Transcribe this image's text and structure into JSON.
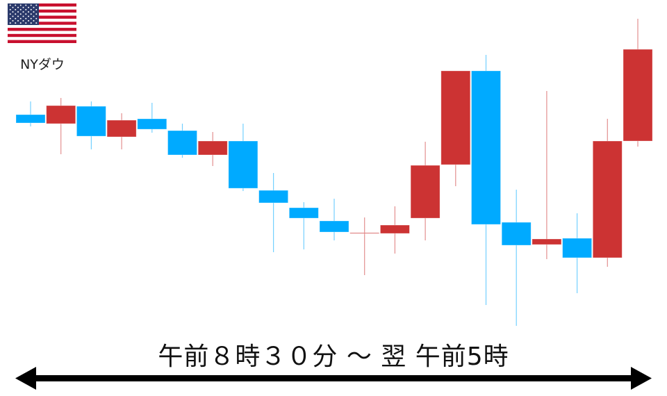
{
  "chart_data": {
    "type": "candlestick",
    "title": "",
    "instrument_label": "NYダウ",
    "time_range_label": "午前８時３０分 ～ 翌 午前5時",
    "up_color": "#cc3333",
    "down_color": "#00aaff",
    "grid": false,
    "axes_visible": false,
    "note_units": "relative (no price axis shown)",
    "candles": [
      {
        "o": 335,
        "h": 354,
        "l": 318,
        "c": 323
      },
      {
        "o": 322,
        "h": 359,
        "l": 278,
        "c": 348
      },
      {
        "o": 347,
        "h": 354,
        "l": 285,
        "c": 304
      },
      {
        "o": 303,
        "h": 337,
        "l": 285,
        "c": 327
      },
      {
        "o": 329,
        "h": 352,
        "l": 309,
        "c": 314
      },
      {
        "o": 312,
        "h": 322,
        "l": 273,
        "c": 277
      },
      {
        "o": 277,
        "h": 310,
        "l": 261,
        "c": 297
      },
      {
        "o": 297,
        "h": 322,
        "l": 225,
        "c": 229
      },
      {
        "o": 226,
        "h": 251,
        "l": 137,
        "c": 208
      },
      {
        "o": 201,
        "h": 209,
        "l": 141,
        "c": 186
      },
      {
        "o": 182,
        "h": 214,
        "l": 154,
        "c": 166
      },
      {
        "o": 164,
        "h": 187,
        "l": 104,
        "c": 165
      },
      {
        "o": 164,
        "h": 203,
        "l": 135,
        "c": 176
      },
      {
        "o": 186,
        "h": 296,
        "l": 154,
        "c": 262
      },
      {
        "o": 263,
        "h": 398,
        "l": 232,
        "c": 398
      },
      {
        "o": 398,
        "h": 421,
        "l": 61,
        "c": 177
      },
      {
        "o": 180,
        "h": 227,
        "l": 31,
        "c": 147
      },
      {
        "o": 148,
        "h": 369,
        "l": 127,
        "c": 156
      },
      {
        "o": 157,
        "h": 193,
        "l": 78,
        "c": 129
      },
      {
        "o": 129,
        "h": 329,
        "l": 116,
        "c": 297
      },
      {
        "o": 297,
        "h": 473,
        "l": 289,
        "c": 429
      }
    ]
  },
  "flag_icon": "us-flag-icon"
}
